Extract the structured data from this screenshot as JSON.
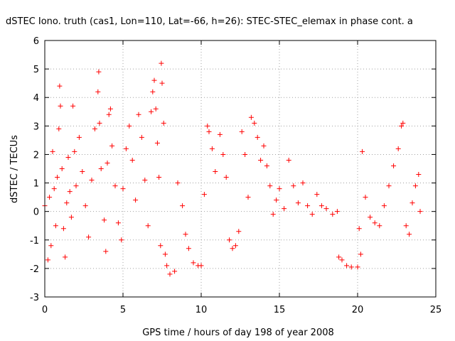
{
  "chart_data": {
    "type": "scatter",
    "title": "dSTEC Iono. truth (cas1, Lon=110, Lat=-66, h=26): STEC-STEC_elemax in phase cont. a",
    "xlabel": "GPS time / hours of day 198 of year 2008",
    "ylabel": "dSTEC  / TECUs",
    "xlim": [
      0,
      25
    ],
    "ylim": [
      -3,
      6
    ],
    "xticks": [
      "0",
      "5",
      "10",
      "15",
      "20",
      "25"
    ],
    "yticks": [
      "-3",
      "-2",
      "-1",
      "0",
      "1",
      "2",
      "3",
      "4",
      "5",
      "6"
    ],
    "grid": true,
    "legend": "none",
    "marker": "+",
    "color": "#ff0000",
    "series": [
      {
        "points": [
          [
            0.0,
            0.2
          ],
          [
            0.2,
            -1.7
          ],
          [
            0.3,
            0.5
          ],
          [
            0.4,
            -1.2
          ],
          [
            0.5,
            2.1
          ],
          [
            0.6,
            0.8
          ],
          [
            0.7,
            -0.5
          ],
          [
            0.8,
            1.2
          ],
          [
            0.9,
            2.9
          ],
          [
            0.95,
            4.4
          ],
          [
            1.0,
            3.7
          ],
          [
            1.1,
            1.5
          ],
          [
            1.2,
            -0.6
          ],
          [
            1.3,
            -1.6
          ],
          [
            1.4,
            0.3
          ],
          [
            1.5,
            1.9
          ],
          [
            1.6,
            0.7
          ],
          [
            1.7,
            -0.2
          ],
          [
            1.8,
            3.7
          ],
          [
            1.9,
            2.1
          ],
          [
            2.0,
            0.9
          ],
          [
            2.2,
            2.6
          ],
          [
            2.4,
            1.4
          ],
          [
            2.6,
            0.2
          ],
          [
            2.8,
            -0.9
          ],
          [
            3.0,
            1.1
          ],
          [
            3.2,
            2.9
          ],
          [
            3.4,
            4.2
          ],
          [
            3.45,
            4.9
          ],
          [
            3.5,
            3.1
          ],
          [
            3.6,
            1.5
          ],
          [
            3.8,
            -0.3
          ],
          [
            3.9,
            -1.4
          ],
          [
            4.0,
            1.7
          ],
          [
            4.1,
            3.4
          ],
          [
            4.2,
            3.6
          ],
          [
            4.3,
            2.3
          ],
          [
            4.5,
            0.9
          ],
          [
            4.7,
            -0.4
          ],
          [
            4.9,
            -1.0
          ],
          [
            5.0,
            0.8
          ],
          [
            5.2,
            2.2
          ],
          [
            5.4,
            3.0
          ],
          [
            5.6,
            1.8
          ],
          [
            5.8,
            0.4
          ],
          [
            6.0,
            3.4
          ],
          [
            6.2,
            2.6
          ],
          [
            6.4,
            1.1
          ],
          [
            6.6,
            -0.5
          ],
          [
            6.8,
            3.5
          ],
          [
            6.9,
            4.2
          ],
          [
            7.0,
            4.6
          ],
          [
            7.1,
            3.6
          ],
          [
            7.2,
            2.4
          ],
          [
            7.3,
            1.2
          ],
          [
            7.4,
            -1.2
          ],
          [
            7.45,
            5.2
          ],
          [
            7.5,
            4.5
          ],
          [
            7.6,
            3.1
          ],
          [
            7.7,
            -1.5
          ],
          [
            7.8,
            -1.9
          ],
          [
            8.0,
            -2.2
          ],
          [
            8.3,
            -2.1
          ],
          [
            8.5,
            1.0
          ],
          [
            8.8,
            0.2
          ],
          [
            9.0,
            -0.8
          ],
          [
            9.2,
            -1.3
          ],
          [
            9.5,
            -1.8
          ],
          [
            9.8,
            -1.9
          ],
          [
            10.0,
            -1.9
          ],
          [
            10.2,
            0.6
          ],
          [
            10.4,
            3.0
          ],
          [
            10.5,
            2.8
          ],
          [
            10.7,
            2.2
          ],
          [
            10.9,
            1.4
          ],
          [
            11.2,
            2.7
          ],
          [
            11.4,
            2.0
          ],
          [
            11.6,
            1.2
          ],
          [
            11.8,
            -1.0
          ],
          [
            12.0,
            -1.3
          ],
          [
            12.2,
            -1.2
          ],
          [
            12.4,
            -0.7
          ],
          [
            12.6,
            2.8
          ],
          [
            12.8,
            2.0
          ],
          [
            13.0,
            0.5
          ],
          [
            13.2,
            3.3
          ],
          [
            13.4,
            3.1
          ],
          [
            13.6,
            2.6
          ],
          [
            13.8,
            1.8
          ],
          [
            14.0,
            2.3
          ],
          [
            14.2,
            1.6
          ],
          [
            14.4,
            0.9
          ],
          [
            14.6,
            -0.1
          ],
          [
            14.8,
            0.4
          ],
          [
            15.0,
            0.8
          ],
          [
            15.3,
            0.1
          ],
          [
            15.6,
            1.8
          ],
          [
            15.9,
            0.9
          ],
          [
            16.2,
            0.3
          ],
          [
            16.5,
            1.0
          ],
          [
            16.8,
            0.2
          ],
          [
            17.1,
            -0.1
          ],
          [
            17.4,
            0.6
          ],
          [
            17.7,
            0.2
          ],
          [
            18.0,
            0.1
          ],
          [
            18.4,
            -0.1
          ],
          [
            18.7,
            0.0
          ],
          [
            18.8,
            -1.6
          ],
          [
            19.0,
            -1.7
          ],
          [
            19.3,
            -1.9
          ],
          [
            19.6,
            -1.95
          ],
          [
            20.0,
            -1.95
          ],
          [
            20.1,
            -0.6
          ],
          [
            20.2,
            -1.5
          ],
          [
            20.3,
            2.1
          ],
          [
            20.5,
            0.5
          ],
          [
            20.8,
            -0.2
          ],
          [
            21.1,
            -0.4
          ],
          [
            21.4,
            -0.5
          ],
          [
            21.7,
            0.2
          ],
          [
            22.0,
            0.9
          ],
          [
            22.3,
            1.6
          ],
          [
            22.6,
            2.2
          ],
          [
            22.8,
            3.0
          ],
          [
            22.9,
            3.1
          ],
          [
            23.1,
            -0.5
          ],
          [
            23.3,
            -0.8
          ],
          [
            23.5,
            0.3
          ],
          [
            23.7,
            0.9
          ],
          [
            23.9,
            1.3
          ],
          [
            24.0,
            0.0
          ]
        ]
      }
    ]
  }
}
